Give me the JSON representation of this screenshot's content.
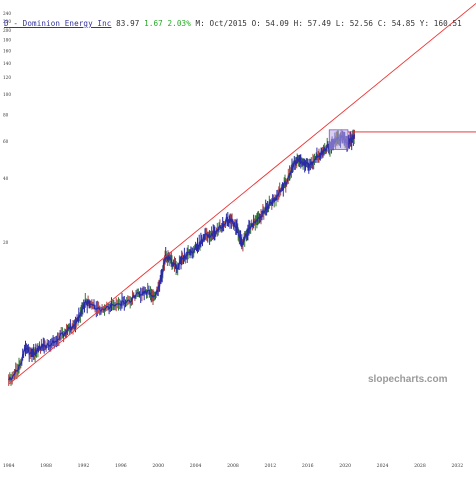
{
  "header": {
    "symbol_prefix": "D",
    "company": " - Dominion Energy Inc",
    "last": "83.97",
    "change": "1.67 2.03%",
    "ohlc": "M: Oct/2015 O: 54.09 H: 57.49 L: 52.56 C: 54.85 Y: 160.51"
  },
  "watermark": "slopecharts.com",
  "colors": {
    "price": "#2a2aa8",
    "up_wick": "#3a7a3a",
    "down_wick": "#aa4444",
    "trendline": "#ee3333",
    "horizontal": "#dd2222",
    "highlight_fill": "#b8a8e0",
    "highlight_stroke": "#7b55cc",
    "axis_text": "#333333"
  },
  "chart_data": {
    "type": "line",
    "title": "D - Dominion Energy Inc",
    "scale": "log",
    "x_ticks": [
      "1984",
      "1988",
      "1992",
      "1996",
      "2000",
      "2004",
      "2008",
      "2012",
      "2016",
      "2020",
      "2024",
      "2028",
      "2032"
    ],
    "y_ticks": [
      20,
      40,
      60,
      80,
      100,
      120,
      140,
      160,
      180,
      200,
      220,
      240
    ],
    "y_tick_labels": [
      "20",
      "40",
      "60",
      "80",
      "100",
      "120",
      "140",
      "160",
      "180",
      "200",
      "220",
      "240"
    ],
    "xlim": [
      1983.5,
      2034.0
    ],
    "ylim": [
      3.55,
      255
    ],
    "series": [
      {
        "name": "D",
        "x": [
          1984.0,
          1985.0,
          1985.8,
          1986.6,
          1987.2,
          1988.0,
          1989.0,
          1990.0,
          1990.8,
          1991.5,
          1992.2,
          1993.0,
          1994.0,
          1995.0,
          1996.0,
          1997.0,
          1998.0,
          1999.0,
          1999.7,
          2000.3,
          2000.8,
          2001.3,
          2002.0,
          2002.7,
          2003.5,
          2004.3,
          2005.0,
          2005.8,
          2006.5,
          2007.3,
          2007.9,
          2008.5,
          2009.0,
          2009.5,
          2010.3,
          2011.0,
          2011.8,
          2012.5,
          2013.3,
          2014.0,
          2014.5,
          2015.0,
          2015.5,
          2016.2,
          2016.9,
          2017.5,
          2018.0,
          2018.6,
          2019.2,
          2019.8,
          2020.2,
          2020.7,
          2021.0
        ],
        "y": [
          4.5,
          5.0,
          6.4,
          5.9,
          6.3,
          6.5,
          7.0,
          7.5,
          8.0,
          8.9,
          10.4,
          10.2,
          9.5,
          10.1,
          10.3,
          10.8,
          11.4,
          11.8,
          11.0,
          13.5,
          17.2,
          16.6,
          15.3,
          17.0,
          17.8,
          19.3,
          21.3,
          22.0,
          23.5,
          25.5,
          25.2,
          23.0,
          19.3,
          22.5,
          25.0,
          27.0,
          30.0,
          32.0,
          36.0,
          41.0,
          47.0,
          49.0,
          47.0,
          46.0,
          50.0,
          53.0,
          56.0,
          57.5,
          62.0,
          63.0,
          58.0,
          61.0,
          64.0
        ]
      }
    ],
    "trendline": {
      "x": [
        1984.0,
        2034.0
      ],
      "y": [
        4.3,
        268.0
      ]
    },
    "horizontal_line": {
      "y": 66.5,
      "x_start": 2020.3
    }
  }
}
